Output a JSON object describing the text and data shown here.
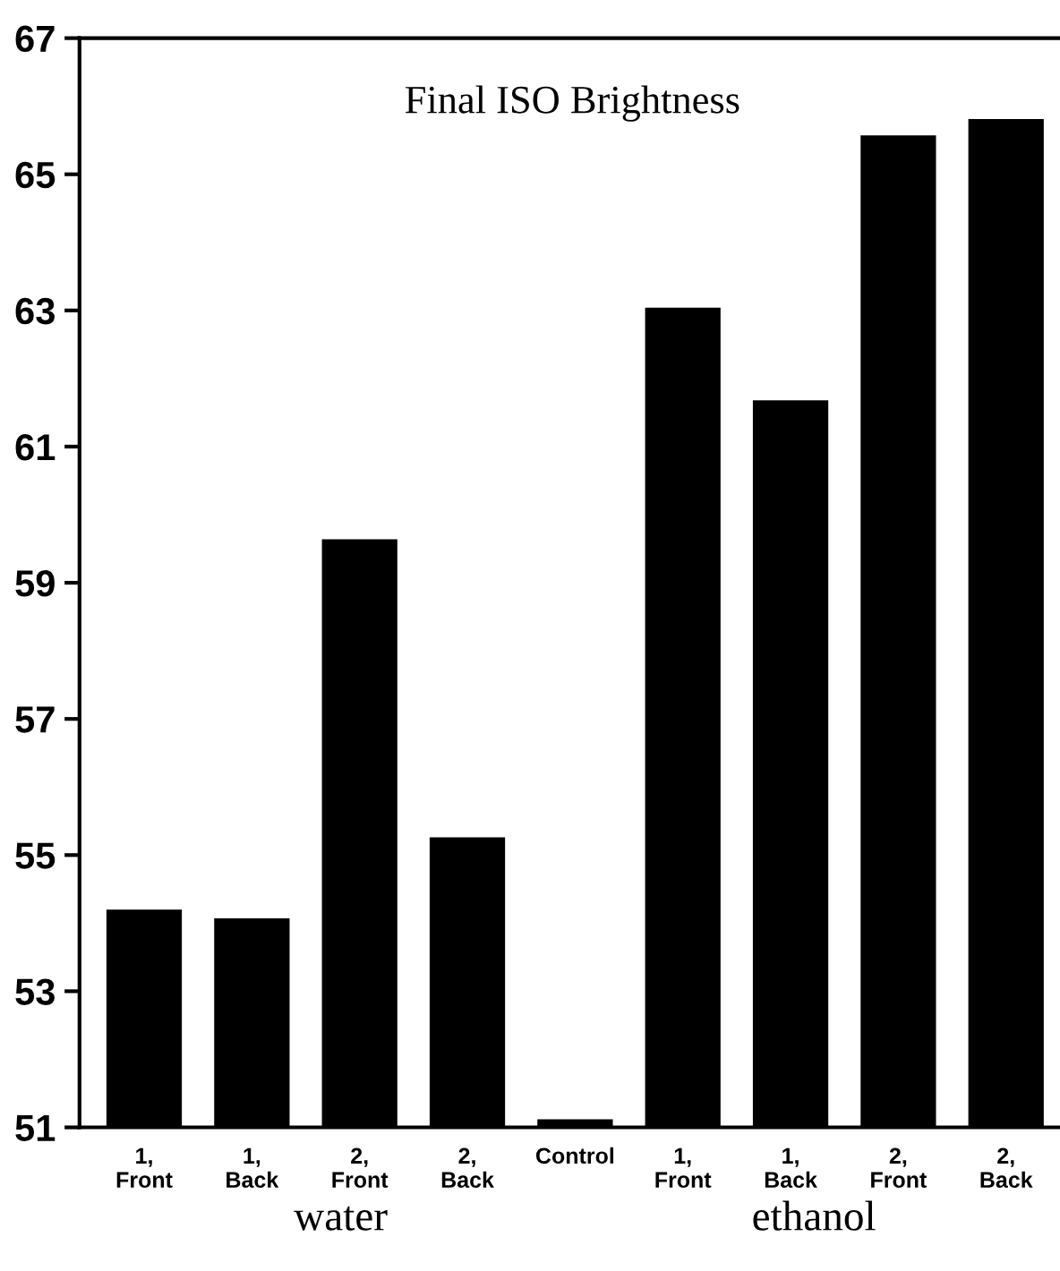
{
  "chart_data": {
    "type": "bar",
    "title": "Final ISO Brightness",
    "categories": [
      "1,\nFront",
      "1,\nBack",
      "2,\nFront",
      "2,\nBack",
      "Control",
      "1,\nFront",
      "1,\nBack",
      "2,\nFront",
      "2,\nBack"
    ],
    "values": [
      54.2,
      54.07,
      59.64,
      55.26,
      51.12,
      63.04,
      61.68,
      65.57,
      65.81
    ],
    "color": "#000000",
    "ylim": [
      51,
      67
    ],
    "yticks": [
      51,
      53,
      55,
      57,
      59,
      61,
      63,
      65,
      67
    ],
    "grid": false,
    "annotations": [
      "water",
      "ethanol"
    ]
  }
}
